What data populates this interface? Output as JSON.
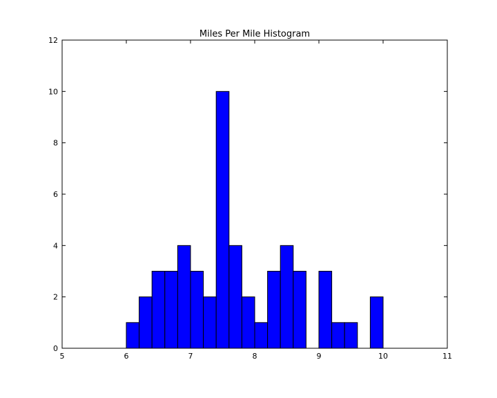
{
  "chart_data": {
    "type": "bar",
    "title": "Miles Per Mile Histogram",
    "xlabel": "",
    "ylabel": "",
    "xlim": [
      5,
      11
    ],
    "ylim": [
      0,
      12
    ],
    "xticks": [
      5,
      6,
      7,
      8,
      9,
      10,
      11
    ],
    "yticks": [
      0,
      2,
      4,
      6,
      8,
      10,
      12
    ],
    "bin_width": 0.2,
    "bars": [
      {
        "x_start": 6.0,
        "value": 1
      },
      {
        "x_start": 6.2,
        "value": 2
      },
      {
        "x_start": 6.4,
        "value": 3
      },
      {
        "x_start": 6.6,
        "value": 3
      },
      {
        "x_start": 6.8,
        "value": 4
      },
      {
        "x_start": 7.0,
        "value": 3
      },
      {
        "x_start": 7.2,
        "value": 2
      },
      {
        "x_start": 7.4,
        "value": 10
      },
      {
        "x_start": 7.6,
        "value": 4
      },
      {
        "x_start": 7.8,
        "value": 2
      },
      {
        "x_start": 8.0,
        "value": 1
      },
      {
        "x_start": 8.2,
        "value": 3
      },
      {
        "x_start": 8.4,
        "value": 4
      },
      {
        "x_start": 8.6,
        "value": 3
      },
      {
        "x_start": 8.8,
        "value": 0
      },
      {
        "x_start": 9.0,
        "value": 3
      },
      {
        "x_start": 9.2,
        "value": 1
      },
      {
        "x_start": 9.4,
        "value": 1
      },
      {
        "x_start": 9.6,
        "value": 0
      },
      {
        "x_start": 9.8,
        "value": 2
      }
    ],
    "bar_color": "#0000ff",
    "edge_color": "#000000",
    "grid": false,
    "legend": "none"
  }
}
